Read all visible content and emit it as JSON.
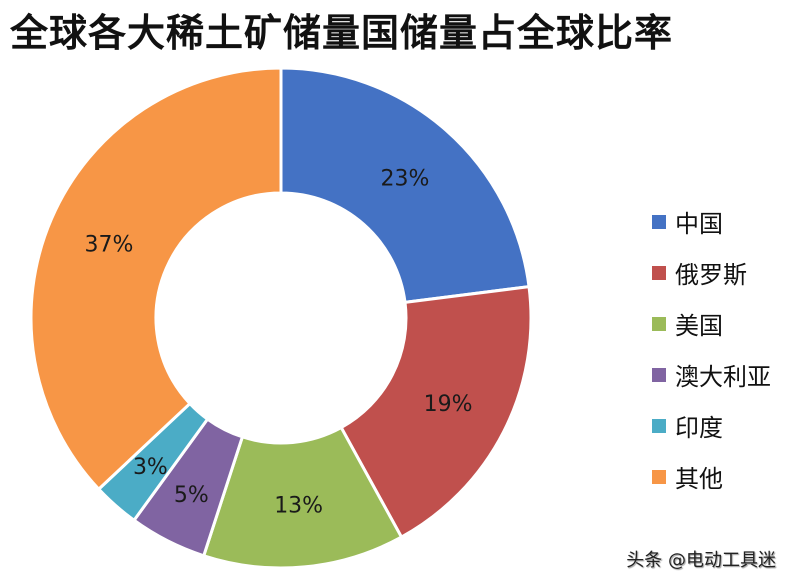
{
  "title": "全球各大稀土矿储量国储量占全球比率",
  "watermark": "头条 @电动工具迷",
  "chart_data": {
    "type": "pie",
    "subtype": "donut",
    "title": "全球各大稀土矿储量国储量占全球比率",
    "categories": [
      "中国",
      "俄罗斯",
      "美国",
      "澳大利亚",
      "印度",
      "其他"
    ],
    "values": [
      23,
      19,
      13,
      5,
      3,
      37
    ],
    "labels": [
      "23%",
      "19%",
      "13%",
      "5%",
      "3%",
      "37%"
    ],
    "colors": [
      "#4472C4",
      "#C0504D",
      "#9BBB59",
      "#8064A2",
      "#4BACC6",
      "#F79646"
    ],
    "legend_position": "right",
    "start_angle_deg": 0,
    "direction": "clockwise"
  },
  "legend": {
    "items": [
      {
        "label": "中国",
        "color": "#4472C4"
      },
      {
        "label": "俄罗斯",
        "color": "#C0504D"
      },
      {
        "label": "美国",
        "color": "#9BBB59"
      },
      {
        "label": "澳大利亚",
        "color": "#8064A2"
      },
      {
        "label": "印度",
        "color": "#4BACC6"
      },
      {
        "label": "其他",
        "color": "#F79646"
      }
    ]
  }
}
